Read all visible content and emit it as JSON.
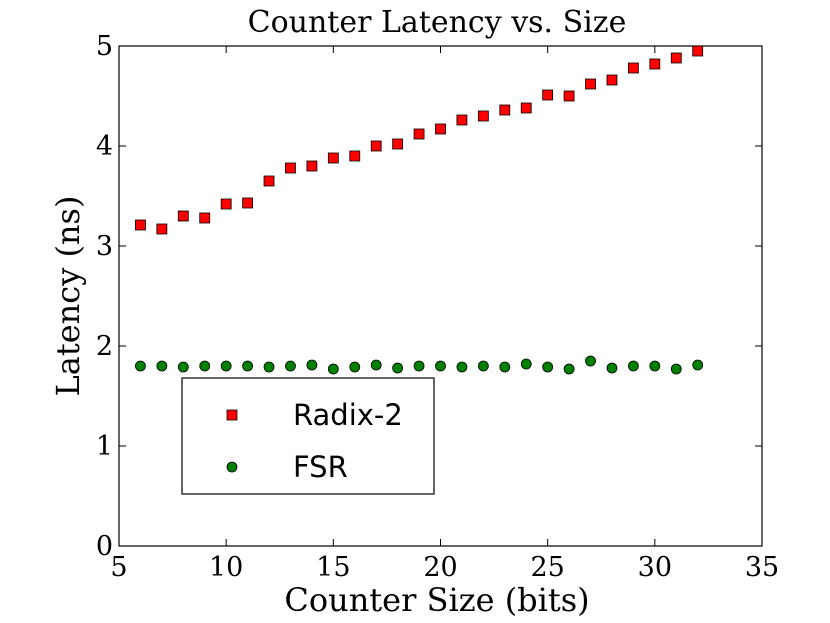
{
  "chart_data": {
    "type": "scatter",
    "title": "Counter Latency vs. Size",
    "xlabel": "Counter Size (bits)",
    "ylabel": "Latency (ns)",
    "xlim": [
      5,
      35
    ],
    "ylim": [
      0,
      5
    ],
    "xticks": [
      5,
      10,
      15,
      20,
      25,
      30,
      35
    ],
    "yticks": [
      0,
      1,
      2,
      3,
      4,
      5
    ],
    "grid": false,
    "legend_position": "lower-left",
    "series": [
      {
        "name": "Radix-2",
        "marker": "square",
        "color": "#ff0000",
        "x": [
          6,
          7,
          8,
          9,
          10,
          11,
          12,
          13,
          14,
          15,
          16,
          17,
          18,
          19,
          20,
          21,
          22,
          23,
          24,
          25,
          26,
          27,
          28,
          29,
          30,
          31,
          32
        ],
        "values": [
          3.21,
          3.17,
          3.3,
          3.28,
          3.42,
          3.43,
          3.65,
          3.78,
          3.8,
          3.88,
          3.9,
          4.0,
          4.02,
          4.12,
          4.17,
          4.26,
          4.3,
          4.36,
          4.38,
          4.51,
          4.5,
          4.62,
          4.66,
          4.78,
          4.82,
          4.88,
          4.95
        ]
      },
      {
        "name": "FSR",
        "marker": "circle",
        "color": "#008000",
        "x": [
          6,
          7,
          8,
          9,
          10,
          11,
          12,
          13,
          14,
          15,
          16,
          17,
          18,
          19,
          20,
          21,
          22,
          23,
          24,
          25,
          26,
          27,
          28,
          29,
          30,
          31,
          32
        ],
        "values": [
          1.8,
          1.8,
          1.79,
          1.8,
          1.8,
          1.8,
          1.79,
          1.8,
          1.81,
          1.77,
          1.79,
          1.81,
          1.78,
          1.8,
          1.8,
          1.79,
          1.8,
          1.79,
          1.82,
          1.79,
          1.77,
          1.85,
          1.78,
          1.8,
          1.8,
          1.77,
          1.81
        ]
      }
    ]
  }
}
